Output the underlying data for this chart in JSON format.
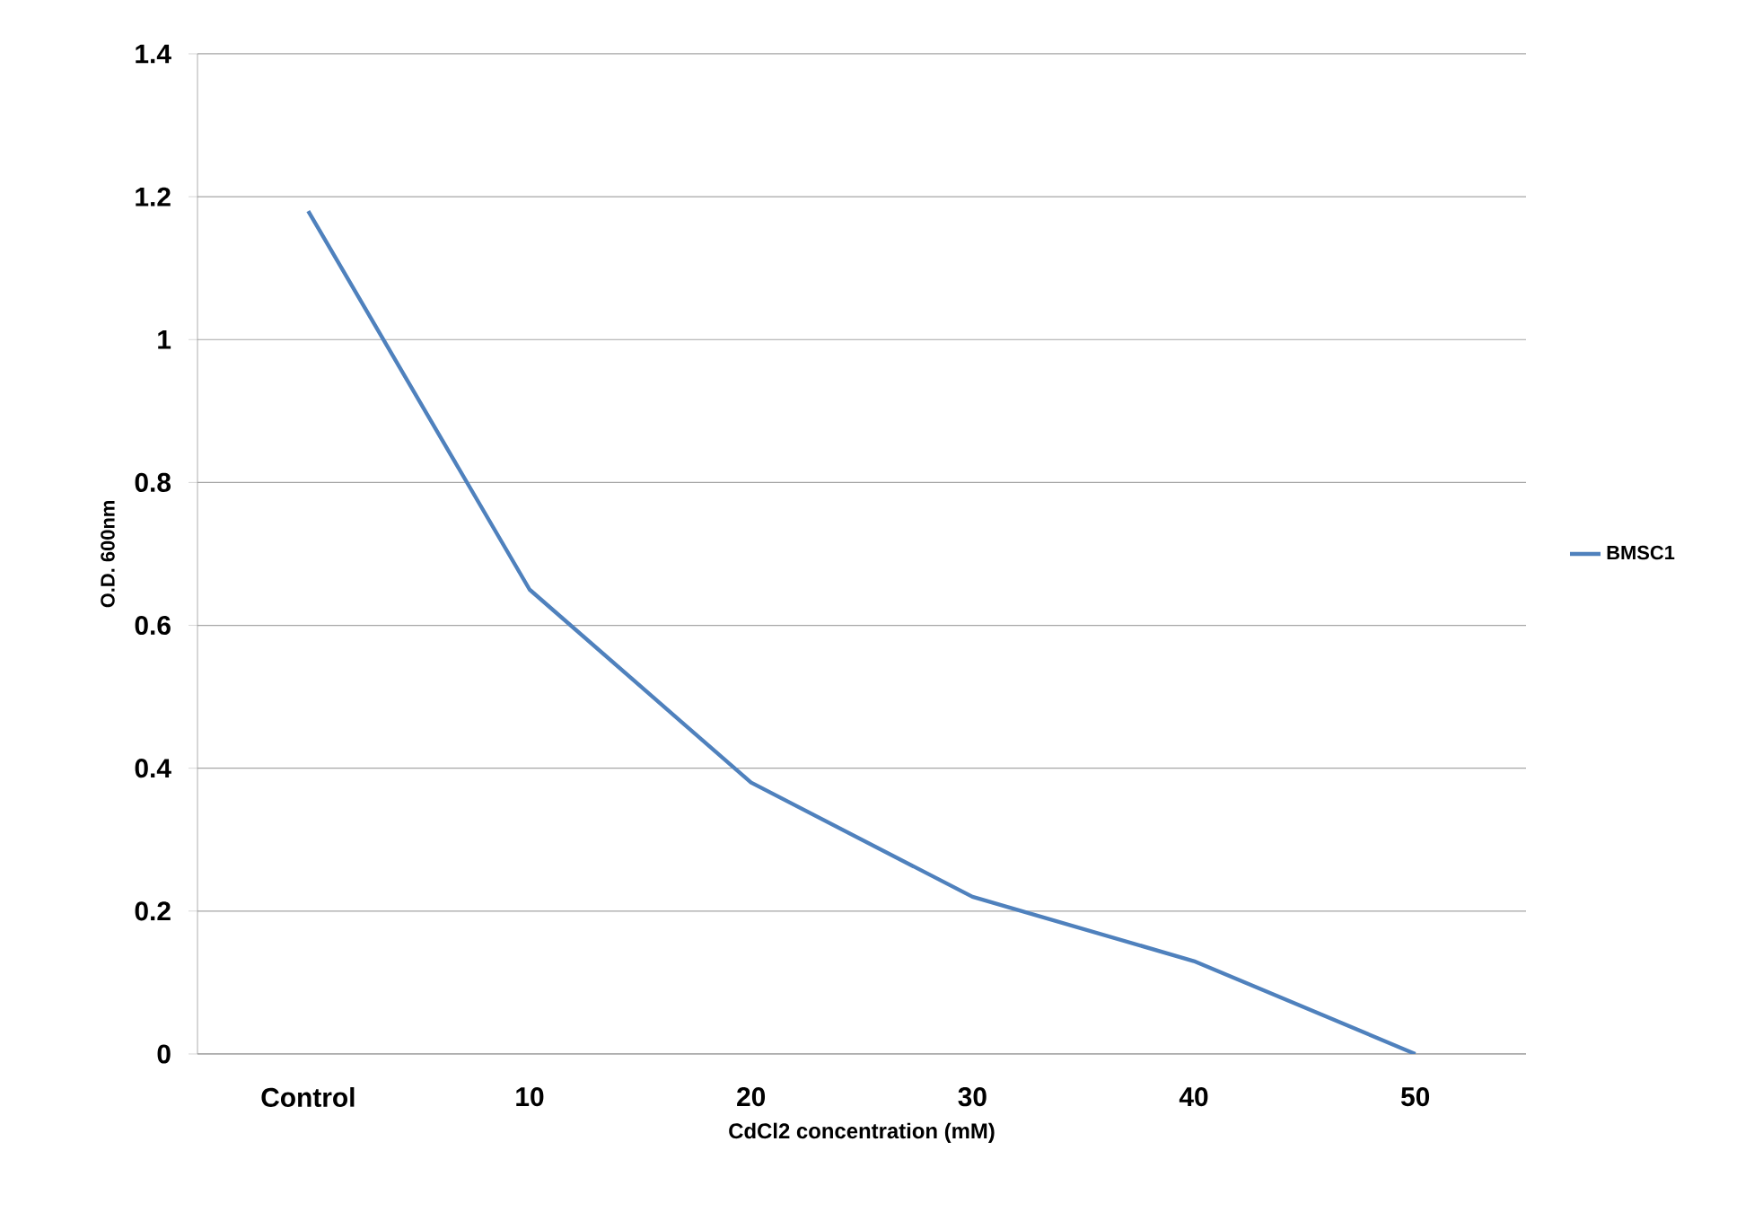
{
  "chart_data": {
    "type": "line",
    "xlabel": "CdCl2 concentration (mM)",
    "ylabel": "O.D. 600nm",
    "categories": [
      "Control",
      "10",
      "20",
      "30",
      "40",
      "50"
    ],
    "series": [
      {
        "name": "BMSC1",
        "color": "#4f81bd",
        "values": [
          1.18,
          0.65,
          0.38,
          0.22,
          0.13,
          0
        ]
      }
    ],
    "ylim": [
      0,
      1.4
    ],
    "yticks": [
      0,
      0.2,
      0.4,
      0.6,
      0.8,
      1,
      1.2,
      1.4
    ],
    "grid": "y",
    "legend": "right"
  }
}
